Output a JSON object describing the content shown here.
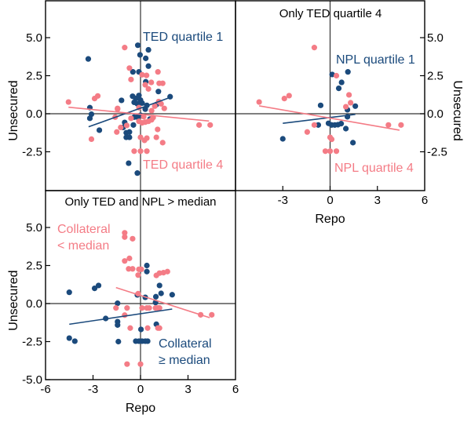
{
  "colors": {
    "series_a": "#1B4A7C",
    "series_b": "#F47C86",
    "axis": "#000000",
    "zero_line": "#333333"
  },
  "chart_data": [
    {
      "id": "panel-top-left",
      "type": "scatter",
      "title": "",
      "xlabel": "",
      "ylabel": "Unsecured",
      "ylabel_side": "left",
      "xlim": [
        -6,
        6
      ],
      "ylim": [
        -5,
        7.4
      ],
      "yticks": [
        -2.5,
        0.0,
        2.5,
        5.0
      ],
      "ytick_labels": [
        "-2.5",
        "0.0",
        "2.5",
        "5.0"
      ],
      "xticks": [],
      "xtick_labels": [],
      "grid": false,
      "series": [
        {
          "name": "TED quartile 1",
          "color_key": "series_a",
          "label_position": "top-center",
          "points": [
            [
              -3.3,
              3.6
            ],
            [
              -0.17,
              4.5
            ],
            [
              0.5,
              4.2
            ],
            [
              -0.03,
              3.87
            ],
            [
              0.33,
              3.64
            ],
            [
              0.5,
              3.13
            ],
            [
              -0.48,
              2.75
            ],
            [
              -0.1,
              2.75
            ],
            [
              0.33,
              2.1
            ],
            [
              1.13,
              1.46
            ],
            [
              1.87,
              1.12
            ],
            [
              -1.2,
              0.88
            ],
            [
              -0.5,
              1.15
            ],
            [
              -0.3,
              1.0
            ],
            [
              -0.1,
              1.2
            ],
            [
              -0.4,
              0.75
            ],
            [
              -0.2,
              0.65
            ],
            [
              0.0,
              0.9
            ],
            [
              0.1,
              0.7
            ],
            [
              0.4,
              0.55
            ],
            [
              1.0,
              0.6
            ],
            [
              -3.2,
              0.4
            ],
            [
              -3.1,
              -0.03
            ],
            [
              -3.2,
              -0.3
            ],
            [
              -2.6,
              -1.08
            ],
            [
              -1.0,
              -0.57
            ],
            [
              -1.1,
              -0.9
            ],
            [
              -0.9,
              -1.25
            ],
            [
              -0.7,
              -1.2
            ],
            [
              -0.45,
              -0.74
            ],
            [
              -0.4,
              -0.22
            ],
            [
              -0.2,
              -0.22
            ],
            [
              0.0,
              -0.1
            ],
            [
              0.6,
              -0.35
            ],
            [
              -0.9,
              -1.55
            ],
            [
              -0.7,
              -1.55
            ],
            [
              -0.75,
              -3.25
            ],
            [
              -0.2,
              -3.9
            ],
            [
              0.3,
              0.3
            ]
          ],
          "fit_line": [
            [
              -3.28,
              -0.86
            ],
            [
              1.9,
              1.08
            ]
          ]
        },
        {
          "name": "TED quartile 4",
          "color_key": "series_b",
          "label_position": "bottom-center",
          "points": [
            [
              -1.0,
              4.35
            ],
            [
              -0.7,
              3.0
            ],
            [
              0.1,
              2.56
            ],
            [
              0.38,
              2.52
            ],
            [
              1.1,
              2.75
            ],
            [
              -0.6,
              2.25
            ],
            [
              0.68,
              2.06
            ],
            [
              1.18,
              2.0
            ],
            [
              1.4,
              2.0
            ],
            [
              -4.55,
              0.77
            ],
            [
              -2.9,
              1.0
            ],
            [
              -2.7,
              1.17
            ],
            [
              -1.45,
              0.35
            ],
            [
              0.5,
              1.63
            ],
            [
              0.3,
              1.9
            ],
            [
              1.15,
              0.8
            ],
            [
              0.9,
              0.5
            ],
            [
              1.3,
              0.65
            ],
            [
              1.5,
              0.35
            ],
            [
              0.7,
              0.2
            ],
            [
              -1.45,
              0.3
            ],
            [
              -1.6,
              -0.22
            ],
            [
              -1.25,
              -0.9
            ],
            [
              -0.87,
              -0.77
            ],
            [
              -1.5,
              -1.2
            ],
            [
              -3.1,
              -1.67
            ],
            [
              3.7,
              -0.74
            ],
            [
              4.4,
              -0.74
            ],
            [
              1.08,
              -1.03
            ],
            [
              1.0,
              -1.55
            ],
            [
              1.4,
              -1.9
            ],
            [
              0.4,
              -1.6
            ],
            [
              0.25,
              -1.75
            ],
            [
              0.0,
              -1.55
            ],
            [
              -0.1,
              -0.5
            ],
            [
              0.1,
              -0.6
            ],
            [
              0.3,
              -0.55
            ],
            [
              0.5,
              -0.5
            ],
            [
              0.7,
              -0.4
            ],
            [
              0.2,
              -0.2
            ],
            [
              -0.1,
              0.4
            ],
            [
              0.0,
              -2.46
            ],
            [
              -0.4,
              -2.46
            ],
            [
              0.4,
              -2.46
            ],
            [
              0.8,
              -0.25
            ],
            [
              -0.6,
              -0.3
            ]
          ],
          "fit_line": [
            [
              -4.55,
              0.43
            ],
            [
              4.33,
              -0.48
            ]
          ]
        }
      ]
    },
    {
      "id": "panel-top-right",
      "type": "scatter",
      "title": "Only TED quartile 4",
      "xlabel": "Repo",
      "ylabel": "Unsecured",
      "ylabel_side": "right",
      "xlim": [
        -6,
        6
      ],
      "ylim": [
        -5,
        7.4
      ],
      "yticks": [
        -2.5,
        0.0,
        2.5,
        5.0
      ],
      "ytick_labels": [
        "-2.5",
        "0.0",
        "2.5",
        "5.0"
      ],
      "xticks": [
        -3,
        0,
        3,
        6
      ],
      "xtick_labels": [
        "-3",
        "0",
        "3",
        "6"
      ],
      "grid": false,
      "series": [
        {
          "name": "NPL quartile 1",
          "color_key": "series_a",
          "label_position": "top-right",
          "points": [
            [
              0.13,
              2.58
            ],
            [
              1.13,
              2.75
            ],
            [
              0.73,
              2.06
            ],
            [
              0.55,
              1.67
            ],
            [
              -0.6,
              0.55
            ],
            [
              1.6,
              0.5
            ],
            [
              1.1,
              0.26
            ],
            [
              1.1,
              -0.2
            ],
            [
              -0.75,
              -0.74
            ],
            [
              -0.1,
              -0.63
            ],
            [
              0.1,
              -0.74
            ],
            [
              0.3,
              -0.74
            ],
            [
              0.5,
              -0.72
            ],
            [
              0.7,
              -0.65
            ],
            [
              1.0,
              -0.98
            ],
            [
              -3.0,
              -1.65
            ],
            [
              1.45,
              -1.9
            ]
          ],
          "fit_line": [
            [
              -3.0,
              -0.63
            ],
            [
              1.6,
              -0.04
            ]
          ]
        },
        {
          "name": "NPL quartile 4",
          "color_key": "series_b",
          "label_position": "bottom-right",
          "points": [
            [
              -1.0,
              4.35
            ],
            [
              0.4,
              2.5
            ],
            [
              -4.5,
              0.77
            ],
            [
              -2.9,
              1.0
            ],
            [
              -2.6,
              1.19
            ],
            [
              1.2,
              1.24
            ],
            [
              1.3,
              0.72
            ],
            [
              1.0,
              0.46
            ],
            [
              -1.0,
              -0.74
            ],
            [
              -1.45,
              -1.2
            ],
            [
              0.0,
              -1.55
            ],
            [
              0.1,
              -1.68
            ],
            [
              -0.3,
              -2.46
            ],
            [
              0.0,
              -2.46
            ],
            [
              0.4,
              -2.46
            ],
            [
              3.7,
              -0.74
            ],
            [
              4.5,
              -0.74
            ]
          ],
          "fit_line": [
            [
              -4.5,
              0.52
            ],
            [
              4.4,
              -1.08
            ]
          ]
        }
      ]
    },
    {
      "id": "panel-bottom-left",
      "type": "scatter",
      "title": "Only TED and NPL > median",
      "xlabel": "Repo",
      "ylabel": "Unsecured",
      "ylabel_side": "left",
      "xlim": [
        -6,
        6
      ],
      "ylim": [
        -5,
        7.4
      ],
      "yticks": [
        -5.0,
        -2.5,
        0.0,
        2.5,
        5.0
      ],
      "ytick_labels": [
        "-5.0",
        "-2.5",
        "0.0",
        "2.5",
        "5.0"
      ],
      "xticks": [
        -6,
        -3,
        0,
        3,
        6
      ],
      "xtick_labels": [
        "-6",
        "-3",
        "0",
        "3",
        "6"
      ],
      "grid": false,
      "series": [
        {
          "name": "Collateral\n≥ median",
          "color_key": "series_a",
          "label_position": "bottom-right",
          "points": [
            [
              0.4,
              2.5
            ],
            [
              0.4,
              2.1
            ],
            [
              -4.5,
              0.74
            ],
            [
              -2.9,
              1.0
            ],
            [
              -2.65,
              1.19
            ],
            [
              1.2,
              1.19
            ],
            [
              1.3,
              0.67
            ],
            [
              2.0,
              0.58
            ],
            [
              -0.2,
              0.57
            ],
            [
              0.3,
              0.41
            ],
            [
              0.97,
              0.45
            ],
            [
              -1.45,
              0.02
            ],
            [
              0.95,
              0.07
            ],
            [
              -2.2,
              -0.98
            ],
            [
              -1.45,
              -1.19
            ],
            [
              -1.45,
              -1.41
            ],
            [
              0.03,
              -1.7
            ],
            [
              1.0,
              -1.36
            ],
            [
              -4.5,
              -2.27
            ],
            [
              -4.15,
              -2.47
            ],
            [
              -1.4,
              -2.5
            ],
            [
              -0.3,
              -2.47
            ],
            [
              -0.1,
              -2.47
            ],
            [
              0.1,
              -2.47
            ],
            [
              0.3,
              -2.47
            ],
            [
              0.45,
              -2.47
            ]
          ],
          "fit_line": [
            [
              -4.5,
              -1.36
            ],
            [
              2.0,
              -0.36
            ]
          ]
        },
        {
          "name": "Collateral\n< median",
          "color_key": "series_b",
          "label_position": "top-left",
          "points": [
            [
              -1.0,
              4.65
            ],
            [
              -1.0,
              4.37
            ],
            [
              -0.5,
              4.26
            ],
            [
              -1.0,
              2.8
            ],
            [
              -0.7,
              2.97
            ],
            [
              -0.75,
              2.28
            ],
            [
              -0.5,
              2.28
            ],
            [
              -0.1,
              2.25
            ],
            [
              0.05,
              2.25
            ],
            [
              -0.15,
              1.87
            ],
            [
              1.0,
              1.85
            ],
            [
              1.2,
              2.0
            ],
            [
              1.45,
              2.03
            ],
            [
              1.7,
              2.1
            ],
            [
              -0.15,
              0.65
            ],
            [
              -1.55,
              -0.29
            ],
            [
              -0.85,
              -0.29
            ],
            [
              0.1,
              -0.29
            ],
            [
              0.4,
              -0.29
            ],
            [
              0.55,
              -0.29
            ],
            [
              0.95,
              -0.29
            ],
            [
              1.1,
              -0.29
            ],
            [
              1.2,
              -0.29
            ],
            [
              -1.0,
              -0.76
            ],
            [
              -0.65,
              -1.61
            ],
            [
              0.45,
              -1.61
            ],
            [
              1.1,
              -1.61
            ],
            [
              1.2,
              -1.61
            ],
            [
              -0.85,
              -3.98
            ],
            [
              0.0,
              -3.98
            ],
            [
              3.8,
              -0.74
            ],
            [
              4.5,
              -0.74
            ]
          ],
          "fit_line": [
            [
              -1.55,
              1.05
            ],
            [
              4.37,
              -0.93
            ]
          ]
        }
      ]
    }
  ]
}
